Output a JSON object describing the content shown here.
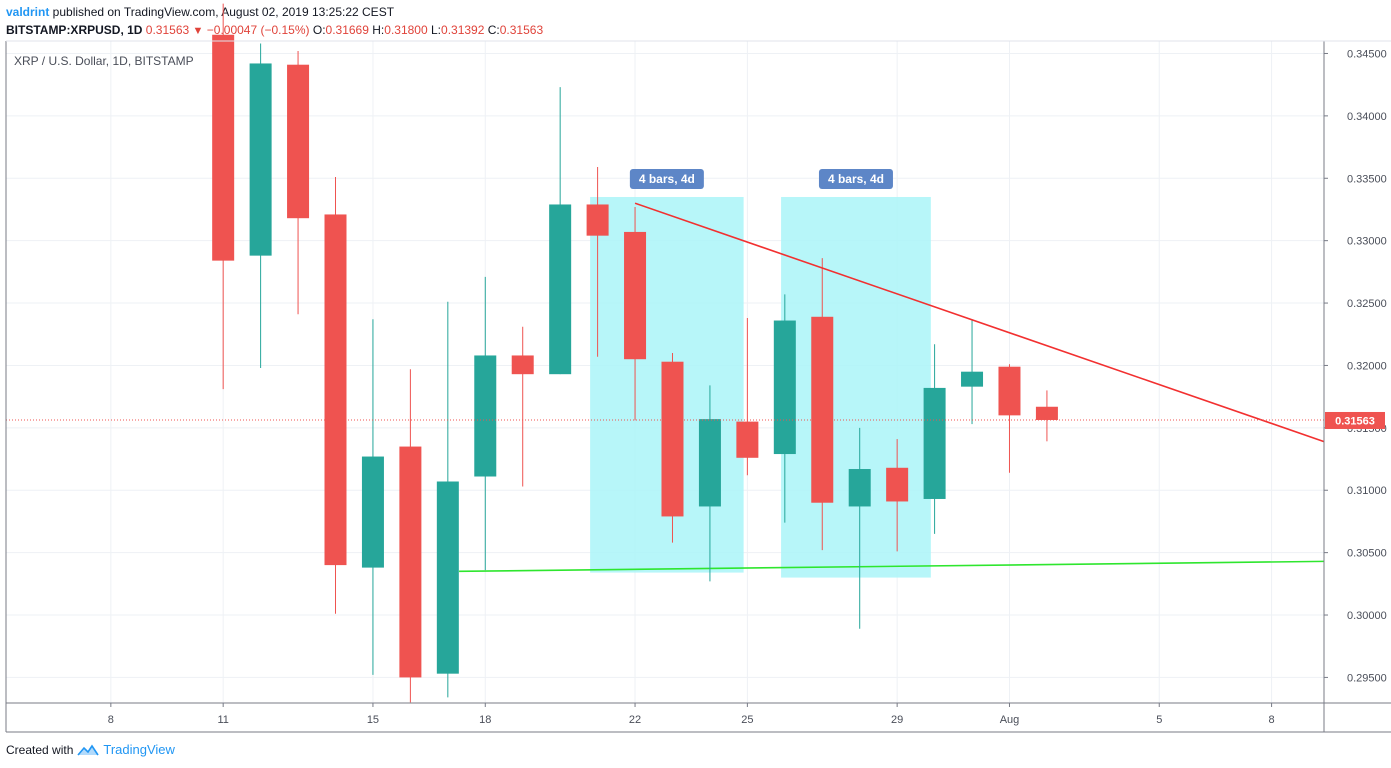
{
  "header": {
    "author": "valdrint",
    "published_text": " published on TradingView.com, August 02, 2019 13:25:22 CEST",
    "symbol": "BITSTAMP:XRPUSD, 1D",
    "last": "0.31563",
    "change": "−0.00047 (−0.15%)",
    "o_label": "O:",
    "o_value": "0.31669",
    "h_label": "H:",
    "h_value": "0.31800",
    "l_label": "L:",
    "l_value": "0.31392",
    "c_label": "C:",
    "c_value": "0.31563"
  },
  "footer": {
    "created_with": "Created with",
    "brand": "TradingView"
  },
  "colors": {
    "up": "#26a69a",
    "down": "#ef5350",
    "grid": "#eef1f5",
    "resistance": "#f23030",
    "support": "#2ee62e",
    "highlight": "#aaf5f8",
    "badge": "#5d86c7",
    "price_line": "#ef5350"
  },
  "chart_data": {
    "type": "candlestick",
    "title": "XRP / U.S. Dollar, 1D, BITSTAMP",
    "ylim": [
      0.29295,
      0.346
    ],
    "y_ticks": [
      "0.29500",
      "0.30000",
      "0.30500",
      "0.31000",
      "0.31500",
      "0.32000",
      "0.32500",
      "0.33000",
      "0.33500",
      "0.34000",
      "0.34500"
    ],
    "x_ticks": [
      {
        "label": "8",
        "day": 8
      },
      {
        "label": "11",
        "day": 11
      },
      {
        "label": "15",
        "day": 15
      },
      {
        "label": "18",
        "day": 18
      },
      {
        "label": "22",
        "day": 22
      },
      {
        "label": "25",
        "day": 25
      },
      {
        "label": "29",
        "day": 29
      },
      {
        "label": "Aug",
        "day": 32
      },
      {
        "label": "5",
        "day": 36
      },
      {
        "label": "8",
        "day": 39
      }
    ],
    "x_range": [
      5.2,
      40.4
    ],
    "candles": [
      {
        "date": "2019-07-11",
        "o": 0.3465,
        "h": 0.349,
        "l": 0.3181,
        "c": 0.3284
      },
      {
        "date": "2019-07-12",
        "o": 0.3288,
        "h": 0.3458,
        "l": 0.3198,
        "c": 0.3442
      },
      {
        "date": "2019-07-13",
        "o": 0.3441,
        "h": 0.3452,
        "l": 0.3241,
        "c": 0.3318
      },
      {
        "date": "2019-07-14",
        "o": 0.3321,
        "h": 0.3351,
        "l": 0.3001,
        "c": 0.304
      },
      {
        "date": "2019-07-15",
        "o": 0.3038,
        "h": 0.3237,
        "l": 0.2952,
        "c": 0.3127
      },
      {
        "date": "2019-07-16",
        "o": 0.3135,
        "h": 0.3197,
        "l": 0.293,
        "c": 0.295
      },
      {
        "date": "2019-07-17",
        "o": 0.2953,
        "h": 0.3251,
        "l": 0.2934,
        "c": 0.3107
      },
      {
        "date": "2019-07-18",
        "o": 0.3111,
        "h": 0.3271,
        "l": 0.3036,
        "c": 0.3208
      },
      {
        "date": "2019-07-19",
        "o": 0.3208,
        "h": 0.3231,
        "l": 0.3103,
        "c": 0.3193
      },
      {
        "date": "2019-07-20",
        "o": 0.3193,
        "h": 0.3423,
        "l": 0.3193,
        "c": 0.3329
      },
      {
        "date": "2019-07-21",
        "o": 0.3329,
        "h": 0.3359,
        "l": 0.3207,
        "c": 0.3304
      },
      {
        "date": "2019-07-22",
        "o": 0.3307,
        "h": 0.3327,
        "l": 0.3156,
        "c": 0.3205
      },
      {
        "date": "2019-07-23",
        "o": 0.3203,
        "h": 0.321,
        "l": 0.3058,
        "c": 0.3079
      },
      {
        "date": "2019-07-24",
        "o": 0.3087,
        "h": 0.3184,
        "l": 0.3027,
        "c": 0.3157
      },
      {
        "date": "2019-07-25",
        "o": 0.3155,
        "h": 0.3238,
        "l": 0.3112,
        "c": 0.3126
      },
      {
        "date": "2019-07-26",
        "o": 0.3129,
        "h": 0.3257,
        "l": 0.3074,
        "c": 0.3236
      },
      {
        "date": "2019-07-27",
        "o": 0.3239,
        "h": 0.3286,
        "l": 0.3052,
        "c": 0.309
      },
      {
        "date": "2019-07-28",
        "o": 0.3087,
        "h": 0.315,
        "l": 0.2989,
        "c": 0.3117
      },
      {
        "date": "2019-07-29",
        "o": 0.3118,
        "h": 0.3141,
        "l": 0.3051,
        "c": 0.3091
      },
      {
        "date": "2019-07-30",
        "o": 0.3093,
        "h": 0.3217,
        "l": 0.3065,
        "c": 0.3182
      },
      {
        "date": "2019-07-31",
        "o": 0.3183,
        "h": 0.3237,
        "l": 0.3153,
        "c": 0.3195
      },
      {
        "date": "2019-08-01",
        "o": 0.3199,
        "h": 0.3201,
        "l": 0.3114,
        "c": 0.316
      },
      {
        "date": "2019-08-02",
        "o": 0.31669,
        "h": 0.318,
        "l": 0.31392,
        "c": 0.31563
      }
    ],
    "last_price": 0.31563,
    "last_price_label": "0.31563",
    "annotations": {
      "resistance_line": {
        "from": {
          "day": 22,
          "price": 0.333
        },
        "to": {
          "day": 40.4,
          "price": 0.3139
        }
      },
      "support_line": {
        "from": {
          "day": 17.3,
          "price": 0.3035
        },
        "to": {
          "day": 40.4,
          "price": 0.3043
        }
      },
      "ranges": [
        {
          "label": "4 bars, 4d",
          "from_day": 20.8,
          "to_day": 24.9,
          "top": 0.3335,
          "bottom": 0.3034
        },
        {
          "label": "4 bars, 4d",
          "from_day": 25.9,
          "to_day": 29.9,
          "top": 0.3335,
          "bottom": 0.303
        }
      ]
    }
  }
}
